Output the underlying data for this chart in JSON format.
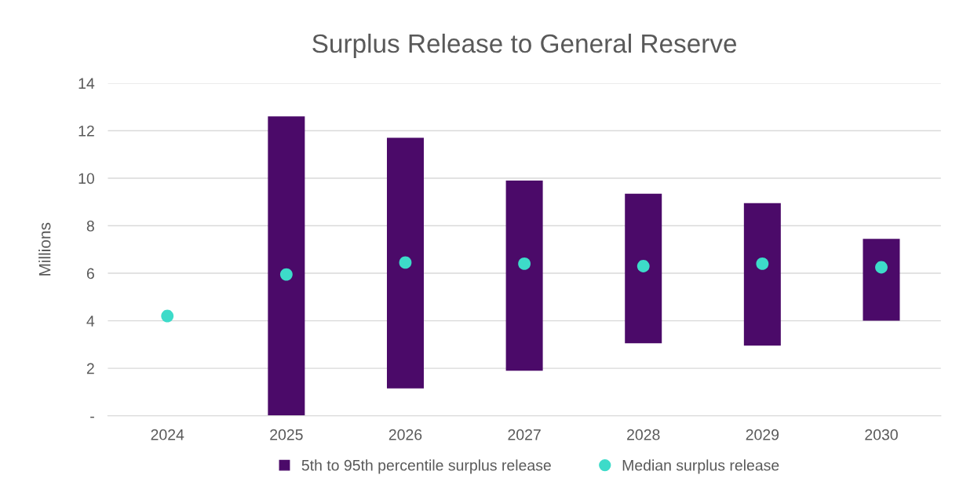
{
  "chart_data": {
    "type": "bar",
    "title": "Surplus Release to General Reserve",
    "ylabel": "Millions",
    "categories": [
      "2024",
      "2025",
      "2026",
      "2027",
      "2028",
      "2029",
      "2030"
    ],
    "series": [
      {
        "name": "5th to 95th percentile surplus release",
        "color": "#4b0a69",
        "base": [
          null,
          0,
          1.15,
          1.9,
          3.05,
          2.95,
          4.0
        ],
        "values": [
          null,
          12.6,
          10.55,
          8.0,
          6.3,
          6.0,
          3.45
        ]
      },
      {
        "name": "Median surplus release",
        "type": "scatter",
        "color": "#3ddbc9",
        "marker": "circle",
        "values": [
          4.2,
          5.95,
          6.45,
          6.4,
          6.3,
          6.4,
          6.25
        ]
      }
    ],
    "ylim": [
      0,
      14
    ],
    "yticks": [
      {
        "value": 0,
        "label": "-"
      },
      2,
      4,
      6,
      8,
      10,
      12,
      14
    ],
    "grid": "y",
    "legend": "bottom"
  }
}
